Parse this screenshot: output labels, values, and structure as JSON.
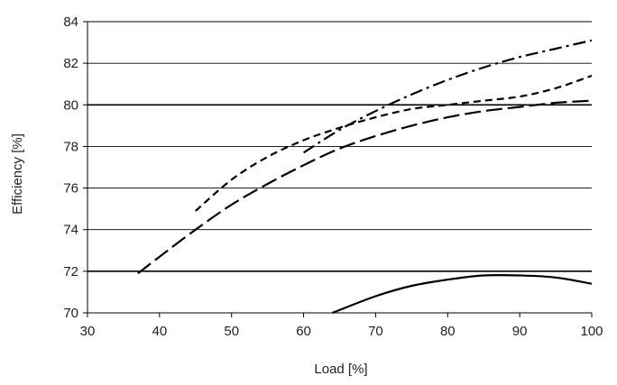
{
  "chart_data": {
    "type": "line",
    "xlabel": "Load [%]",
    "ylabel": "Efficiency [%]",
    "xlim": [
      30,
      100
    ],
    "ylim": [
      70,
      84
    ],
    "xticks": [
      30,
      40,
      50,
      60,
      70,
      80,
      90,
      100
    ],
    "yticks": [
      70,
      72,
      74,
      76,
      78,
      80,
      82,
      84
    ],
    "grid": "horizontal",
    "heavy_gridlines": [
      72,
      80
    ],
    "legend": "none",
    "series": [
      {
        "style": "solid",
        "color": "#000000",
        "x": [
          64,
          70,
          75,
          80,
          85,
          90,
          95,
          100
        ],
        "y": [
          70.0,
          70.8,
          71.3,
          71.6,
          71.8,
          71.8,
          71.7,
          71.4
        ]
      },
      {
        "style": "long-dash",
        "color": "#000000",
        "x": [
          37,
          40,
          45,
          50,
          55,
          60,
          65,
          70,
          75,
          80,
          85,
          90,
          95,
          100
        ],
        "y": [
          71.9,
          72.7,
          74.0,
          75.2,
          76.2,
          77.1,
          77.9,
          78.5,
          79.0,
          79.4,
          79.7,
          79.9,
          80.1,
          80.2
        ]
      },
      {
        "style": "short-dash",
        "color": "#000000",
        "x": [
          45,
          50,
          55,
          60,
          65,
          70,
          75,
          80,
          85,
          90,
          95,
          100
        ],
        "y": [
          74.9,
          76.4,
          77.5,
          78.3,
          78.9,
          79.4,
          79.8,
          80.0,
          80.2,
          80.4,
          80.8,
          81.4
        ]
      },
      {
        "style": "dash-dot",
        "color": "#000000",
        "x": [
          60,
          65,
          70,
          75,
          80,
          85,
          90,
          95,
          100
        ],
        "y": [
          77.7,
          78.8,
          79.7,
          80.5,
          81.2,
          81.8,
          82.3,
          82.7,
          83.1
        ]
      }
    ]
  }
}
